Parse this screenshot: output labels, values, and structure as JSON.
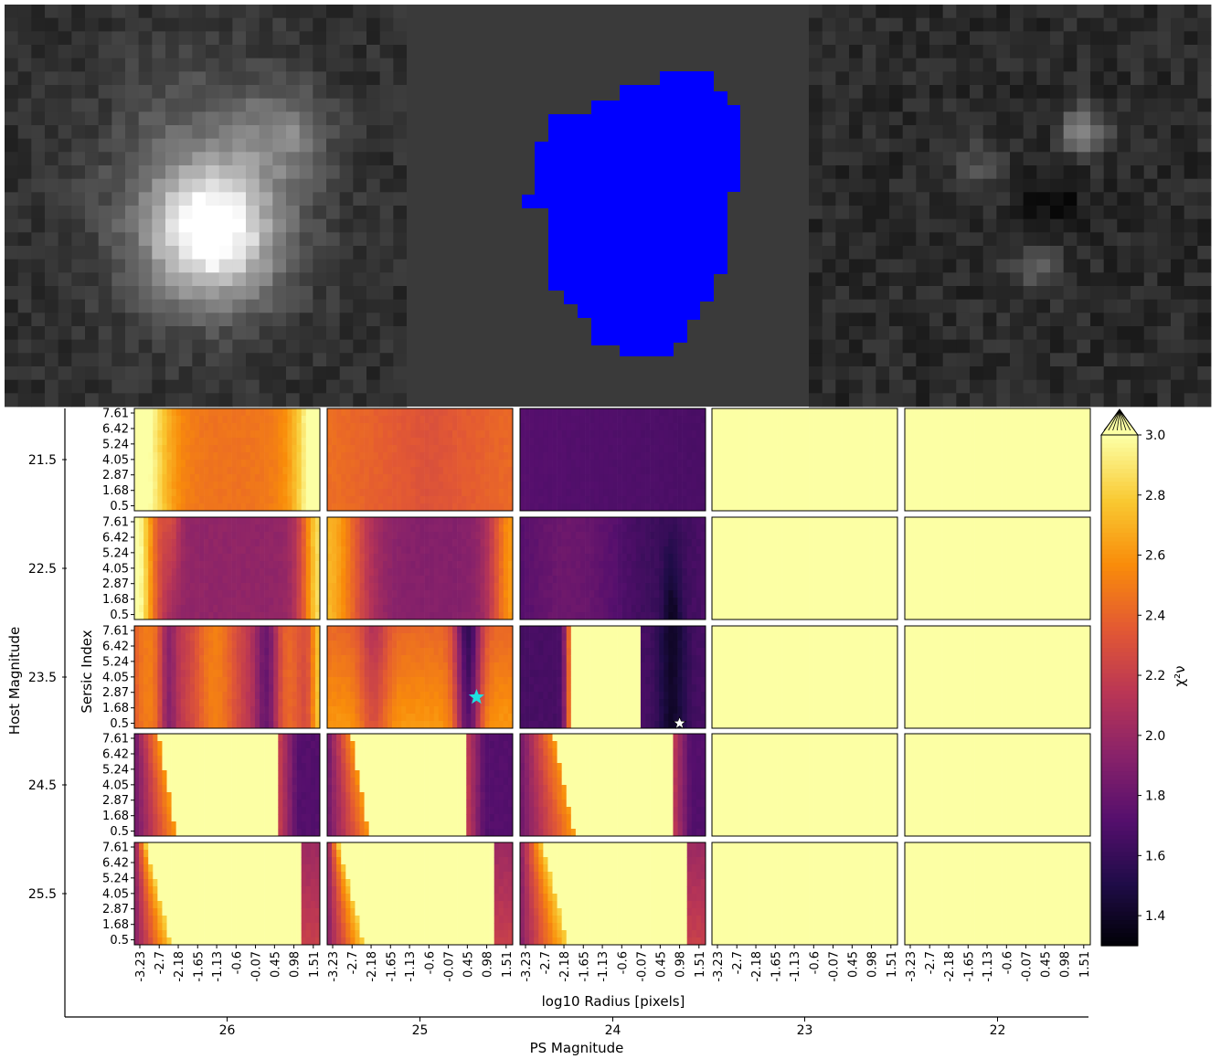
{
  "colors": {
    "mask_background": "#3a3a3a",
    "mask_fill": "#0000ff",
    "highlight_star": "#1fe0e0",
    "best_star": "#ffffff",
    "colormap": "inferno"
  },
  "images": [
    {
      "name": "observed-cutout",
      "colormap": "gray"
    },
    {
      "name": "segmentation-mask",
      "colormap": "gray-blue"
    },
    {
      "name": "residual-cutout",
      "colormap": "gray"
    }
  ],
  "chart_data": {
    "type": "heatmap",
    "grid_rows": 5,
    "grid_cols": 5,
    "xlabel": "PS Magnitude",
    "ylabel": "Host Magnitude",
    "inner_xlabel": "log10 Radius [pixels]",
    "inner_ylabel": "Sersic Index",
    "ps_magnitudes": [
      "26",
      "25",
      "24",
      "23",
      "22"
    ],
    "host_magnitudes": [
      "21.5",
      "22.5",
      "23.5",
      "24.5",
      "25.5"
    ],
    "radius_ticks": [
      "-3.23",
      "-2.7",
      "-2.18",
      "-1.65",
      "-1.13",
      "-0.6",
      "-0.07",
      "0.45",
      "0.98",
      "1.51"
    ],
    "sersic_ticks": [
      "7.61",
      "6.42",
      "5.24",
      "4.05",
      "2.87",
      "1.68",
      "0.5"
    ],
    "colorbar": {
      "label": "χ²ν",
      "min": 1.3,
      "max": 3.0,
      "ticks": [
        "3.0",
        "2.8",
        "2.6",
        "2.4",
        "2.2",
        "2.0",
        "1.8",
        "1.6",
        "1.4"
      ],
      "tick_values": [
        3.0,
        2.8,
        2.6,
        2.4,
        2.2,
        2.0,
        1.8,
        1.6,
        1.4
      ],
      "extend": "max"
    },
    "markers": [
      {
        "name": "cyan-star",
        "host_magnitude": "23.5",
        "ps_magnitude": "25",
        "log10_radius": 0.7,
        "sersic_index": 2.5
      },
      {
        "name": "white-star",
        "host_magnitude": "23.5",
        "ps_magnitude": "24",
        "log10_radius": 0.98,
        "sersic_index": 0.5
      }
    ]
  }
}
